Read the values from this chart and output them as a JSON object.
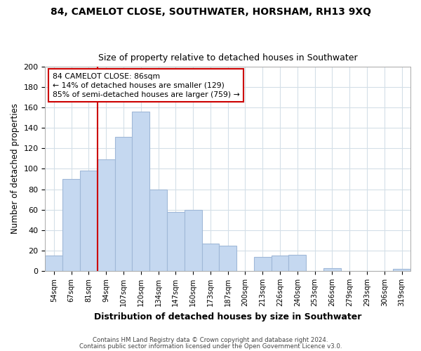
{
  "title1": "84, CAMELOT CLOSE, SOUTHWATER, HORSHAM, RH13 9XQ",
  "title2": "Size of property relative to detached houses in Southwater",
  "xlabel": "Distribution of detached houses by size in Southwater",
  "ylabel": "Number of detached properties",
  "bar_labels": [
    "54sqm",
    "67sqm",
    "81sqm",
    "94sqm",
    "107sqm",
    "120sqm",
    "134sqm",
    "147sqm",
    "160sqm",
    "173sqm",
    "187sqm",
    "200sqm",
    "213sqm",
    "226sqm",
    "240sqm",
    "253sqm",
    "266sqm",
    "279sqm",
    "293sqm",
    "306sqm",
    "319sqm"
  ],
  "bar_values": [
    15,
    90,
    98,
    109,
    131,
    156,
    80,
    58,
    60,
    27,
    25,
    0,
    14,
    15,
    16,
    0,
    3,
    0,
    0,
    0,
    2
  ],
  "bar_color": "#c5d8f0",
  "bar_edge_color": "#a0b8d8",
  "vline_color": "#cc0000",
  "annotation_title": "84 CAMELOT CLOSE: 86sqm",
  "annotation_line1": "← 14% of detached houses are smaller (129)",
  "annotation_line2": "85% of semi-detached houses are larger (759) →",
  "box_edge_color": "#cc0000",
  "ylim": [
    0,
    200
  ],
  "yticks": [
    0,
    20,
    40,
    60,
    80,
    100,
    120,
    140,
    160,
    180,
    200
  ],
  "footer1": "Contains HM Land Registry data © Crown copyright and database right 2024.",
  "footer2": "Contains public sector information licensed under the Open Government Licence v3.0.",
  "bg_color": "#ffffff",
  "grid_color": "#d4dfe8"
}
